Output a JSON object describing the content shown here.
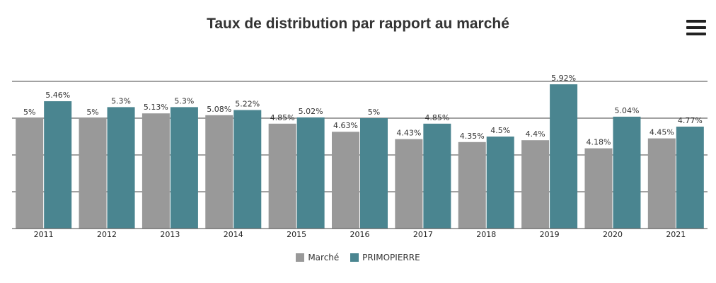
{
  "chart_data": {
    "type": "bar",
    "title": "Taux de distribution par rapport au marché",
    "categories": [
      "2011",
      "2012",
      "2013",
      "2014",
      "2015",
      "2016",
      "2017",
      "2018",
      "2019",
      "2020",
      "2021"
    ],
    "series": [
      {
        "name": "Marché",
        "color": "#999999",
        "values": [
          5,
          5,
          5.13,
          5.08,
          4.85,
          4.63,
          4.43,
          4.35,
          4.4,
          4.18,
          4.45
        ],
        "labels": [
          "5%",
          "5%",
          "5.13%",
          "5.08%",
          "4.85%",
          "4.63%",
          "4.43%",
          "4.35%",
          "4.4%",
          "4.18%",
          "4.45%"
        ]
      },
      {
        "name": "PRIMOPIERRE",
        "color": "#4a8590",
        "values": [
          5.46,
          5.3,
          5.3,
          5.22,
          5.02,
          5,
          4.85,
          4.5,
          5.92,
          5.04,
          4.77
        ],
        "labels": [
          "5.46%",
          "5.3%",
          "5.3%",
          "5.22%",
          "5.02%",
          "5%",
          "4.85%",
          "4.5%",
          "5.92%",
          "5.04%",
          "4.77%"
        ]
      }
    ],
    "xlabel": "",
    "ylabel": "",
    "ylim": [
      2,
      6
    ],
    "grid": true,
    "legend": "bottom-center"
  },
  "icons": {
    "menu": "hamburger-menu-icon"
  }
}
